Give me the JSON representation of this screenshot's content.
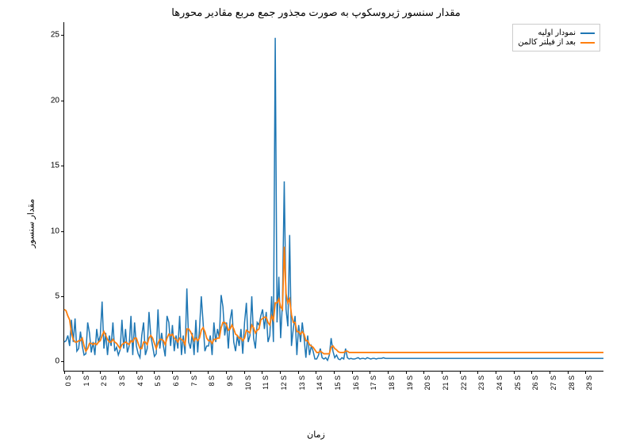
{
  "chart": {
    "type": "line",
    "title": "مقدار سنسور ژیروسکوپ به صورت مجذور جمع مربع مقادیر محورها",
    "title_fontsize": 13,
    "xlabel": "زمان",
    "ylabel": "مقدار سنسور",
    "label_fontsize": 11,
    "background_color": "#ffffff",
    "axis_color": "#000000",
    "ylim": [
      -0.7,
      26
    ],
    "yticks": [
      0,
      5,
      10,
      15,
      20,
      25
    ],
    "x_range": [
      0,
      300
    ],
    "xtick_positions": [
      0,
      10,
      20,
      30,
      40,
      50,
      60,
      70,
      80,
      90,
      100,
      110,
      120,
      130,
      140,
      150,
      160,
      170,
      180,
      190,
      200,
      210,
      220,
      230,
      240,
      250,
      260,
      270,
      280,
      290
    ],
    "xtick_labels": [
      "0 S",
      "1 S",
      "2 S",
      "3 S",
      "4 S",
      "5 S",
      "6 S",
      "7 S",
      "8 S",
      "9 S",
      "10 S",
      "11 S",
      "12 S",
      "13 S",
      "14 S",
      "15 S",
      "16 S",
      "17 S",
      "18 S",
      "19 S",
      "20 S",
      "21 S",
      "22 S",
      "23 S",
      "24 S",
      "25 S",
      "26 S",
      "27 S",
      "28 S",
      "29 S"
    ],
    "series": [
      {
        "name": "raw",
        "label": "نمودار اولیه",
        "color": "#1f77b4",
        "line_width": 1.5,
        "data": [
          1.5,
          1.6,
          2.0,
          1.2,
          3.2,
          1.5,
          3.3,
          0.8,
          1.0,
          2.3,
          1.2,
          0.5,
          0.6,
          3.0,
          2.2,
          0.7,
          1.5,
          0.5,
          2.5,
          1.5,
          2.0,
          4.6,
          1.0,
          2.2,
          0.5,
          2.0,
          1.2,
          3.0,
          0.8,
          1.1,
          0.5,
          0.9,
          3.2,
          1.0,
          2.5,
          0.7,
          1.2,
          3.5,
          0.5,
          3.0,
          1.2,
          0.6,
          0.3,
          2.0,
          3.0,
          0.5,
          1.0,
          3.8,
          2.0,
          1.2,
          0.4,
          0.6,
          4.0,
          1.0,
          2.2,
          1.2,
          0.4,
          3.5,
          3.0,
          1.2,
          2.8,
          0.8,
          2.0,
          1.0,
          3.5,
          0.5,
          2.0,
          0.6,
          5.6,
          1.5,
          1.0,
          2.2,
          0.5,
          3.2,
          0.7,
          2.5,
          5.0,
          3.0,
          0.8,
          1.2,
          1.2,
          2.0,
          0.5,
          3.0,
          1.5,
          2.5,
          1.8,
          5.1,
          4.2,
          2.0,
          3.0,
          1.0,
          3.2,
          4.0,
          1.5,
          0.8,
          2.0,
          1.2,
          2.5,
          0.6,
          3.0,
          4.5,
          1.5,
          2.0,
          5.0,
          1.8,
          1.0,
          3.0,
          2.8,
          3.5,
          4.0,
          2.5,
          3.8,
          1.5,
          2.0,
          5.0,
          1.5,
          24.8,
          3.0,
          6.5,
          1.8,
          4.5,
          13.8,
          4.0,
          2.7,
          9.7,
          1.2,
          2.5,
          3.5,
          0.5,
          2.8,
          1.5,
          3.0,
          1.8,
          0.3,
          2.0,
          0.5,
          1.2,
          0.8,
          0.2,
          0.2,
          0.5,
          1.0,
          0.3,
          0.2,
          0.3,
          0.1,
          0.5,
          1.8,
          0.8,
          0.3,
          0.5,
          0.2,
          0.15,
          0.3,
          0.2,
          1.0,
          0.3,
          0.2,
          0.25,
          0.2,
          0.2,
          0.25,
          0.3,
          0.2,
          0.25,
          0.25,
          0.2,
          0.3,
          0.25,
          0.2,
          0.25,
          0.25,
          0.2,
          0.25,
          0.25,
          0.25,
          0.3,
          0.25,
          0.25,
          0.25,
          0.25,
          0.25,
          0.25,
          0.25,
          0.25,
          0.25,
          0.25,
          0.25,
          0.25,
          0.25,
          0.25,
          0.25,
          0.25,
          0.25,
          0.25,
          0.25,
          0.25,
          0.25,
          0.25,
          0.25,
          0.25,
          0.25,
          0.25,
          0.25,
          0.25,
          0.25,
          0.25,
          0.25,
          0.25,
          0.25,
          0.25,
          0.25,
          0.25,
          0.25,
          0.25,
          0.25,
          0.25,
          0.25,
          0.25,
          0.25,
          0.25,
          0.25,
          0.25,
          0.25,
          0.25,
          0.25,
          0.25,
          0.25,
          0.25,
          0.25,
          0.25,
          0.25,
          0.25,
          0.25,
          0.25,
          0.25,
          0.25,
          0.25,
          0.25,
          0.25,
          0.25,
          0.25,
          0.25,
          0.25,
          0.25,
          0.25,
          0.25,
          0.25,
          0.25,
          0.25,
          0.25,
          0.25,
          0.25,
          0.25,
          0.25,
          0.25,
          0.25,
          0.25,
          0.25,
          0.25,
          0.25,
          0.25,
          0.25,
          0.25,
          0.25,
          0.25,
          0.25,
          0.25,
          0.25,
          0.25,
          0.25,
          0.25,
          0.25,
          0.25,
          0.25,
          0.25,
          0.25,
          0.25,
          0.25,
          0.25,
          0.25,
          0.25,
          0.25,
          0.25,
          0.25,
          0.25,
          0.25,
          0.25,
          0.25,
          0.25,
          0.25,
          0.25,
          0.25,
          0.25,
          0.25,
          0.25,
          0.25,
          0.25,
          0.25
        ]
      },
      {
        "name": "kalman",
        "label": "بعد از فیلتر کالمن",
        "color": "#ff7f0e",
        "line_width": 1.8,
        "data": [
          4.0,
          3.9,
          3.5,
          3.2,
          2.2,
          1.7,
          1.5,
          1.5,
          1.6,
          1.6,
          1.8,
          1.2,
          0.8,
          1.0,
          1.4,
          1.4,
          1.3,
          1.4,
          1.3,
          1.5,
          1.6,
          2.0,
          2.3,
          2.0,
          1.7,
          1.5,
          1.5,
          1.7,
          1.5,
          1.4,
          1.2,
          1.0,
          1.3,
          1.4,
          1.5,
          1.4,
          1.3,
          1.6,
          1.5,
          1.8,
          1.8,
          1.4,
          1.0,
          1.0,
          1.5,
          1.5,
          1.3,
          1.8,
          2.0,
          1.8,
          1.4,
          1.0,
          1.4,
          1.7,
          1.7,
          1.6,
          1.3,
          1.8,
          2.1,
          2.0,
          2.1,
          1.8,
          1.7,
          1.5,
          1.8,
          1.7,
          1.6,
          1.3,
          2.5,
          2.5,
          2.3,
          2.0,
          1.6,
          1.8,
          1.6,
          1.8,
          2.4,
          2.6,
          2.3,
          1.8,
          1.6,
          1.6,
          1.4,
          1.7,
          1.7,
          1.8,
          1.8,
          2.6,
          3.0,
          3.0,
          2.8,
          2.4,
          2.5,
          2.8,
          2.5,
          2.1,
          2.0,
          1.8,
          1.8,
          1.6,
          1.8,
          2.4,
          2.3,
          2.2,
          2.8,
          2.6,
          2.2,
          2.4,
          2.5,
          3.2,
          3.3,
          3.4,
          3.4,
          3.0,
          2.8,
          3.5,
          3.2,
          4.5,
          4.5,
          4.8,
          4.2,
          4.0,
          8.8,
          5.2,
          4.5,
          4.8,
          3.6,
          3.0,
          3.0,
          2.3,
          2.3,
          2.1,
          2.3,
          2.1,
          1.6,
          1.6,
          1.3,
          1.2,
          1.1,
          0.9,
          0.7,
          0.7,
          0.8,
          0.7,
          0.6,
          0.6,
          0.6,
          0.6,
          1.1,
          1.2,
          1.0,
          0.9,
          0.75,
          0.7,
          0.7,
          0.7,
          0.8,
          0.8,
          0.7,
          0.7,
          0.7,
          0.7,
          0.7,
          0.7,
          0.7,
          0.7,
          0.7,
          0.7,
          0.7,
          0.7,
          0.7,
          0.7,
          0.7,
          0.7,
          0.7,
          0.7,
          0.7,
          0.7,
          0.7,
          0.7,
          0.7,
          0.7,
          0.7,
          0.7,
          0.7,
          0.7,
          0.7,
          0.7,
          0.7,
          0.7,
          0.7,
          0.7,
          0.7,
          0.7,
          0.7,
          0.7,
          0.7,
          0.7,
          0.7,
          0.7,
          0.7,
          0.7,
          0.7,
          0.7,
          0.7,
          0.7,
          0.7,
          0.7,
          0.7,
          0.7,
          0.7,
          0.7,
          0.7,
          0.7,
          0.7,
          0.7,
          0.7,
          0.7,
          0.7,
          0.7,
          0.7,
          0.7,
          0.7,
          0.7,
          0.7,
          0.7,
          0.7,
          0.7,
          0.7,
          0.7,
          0.7,
          0.7,
          0.7,
          0.7,
          0.7,
          0.7,
          0.7,
          0.7,
          0.7,
          0.7,
          0.7,
          0.7,
          0.7,
          0.7,
          0.7,
          0.7,
          0.7,
          0.7,
          0.7,
          0.7,
          0.7,
          0.7,
          0.7,
          0.7,
          0.7,
          0.7,
          0.7,
          0.7,
          0.7,
          0.7,
          0.7,
          0.7,
          0.7,
          0.7,
          0.7,
          0.7,
          0.7,
          0.7,
          0.7,
          0.7,
          0.7,
          0.7,
          0.7,
          0.7,
          0.7,
          0.7,
          0.7,
          0.7,
          0.7,
          0.7,
          0.7,
          0.7,
          0.7,
          0.7,
          0.7,
          0.7,
          0.7,
          0.7,
          0.7,
          0.7,
          0.7,
          0.7,
          0.7,
          0.7,
          0.7,
          0.7,
          0.7,
          0.7,
          0.7,
          0.7
        ]
      }
    ],
    "legend": {
      "position": "top-right",
      "fontsize": 10,
      "border_color": "#cccccc"
    }
  }
}
